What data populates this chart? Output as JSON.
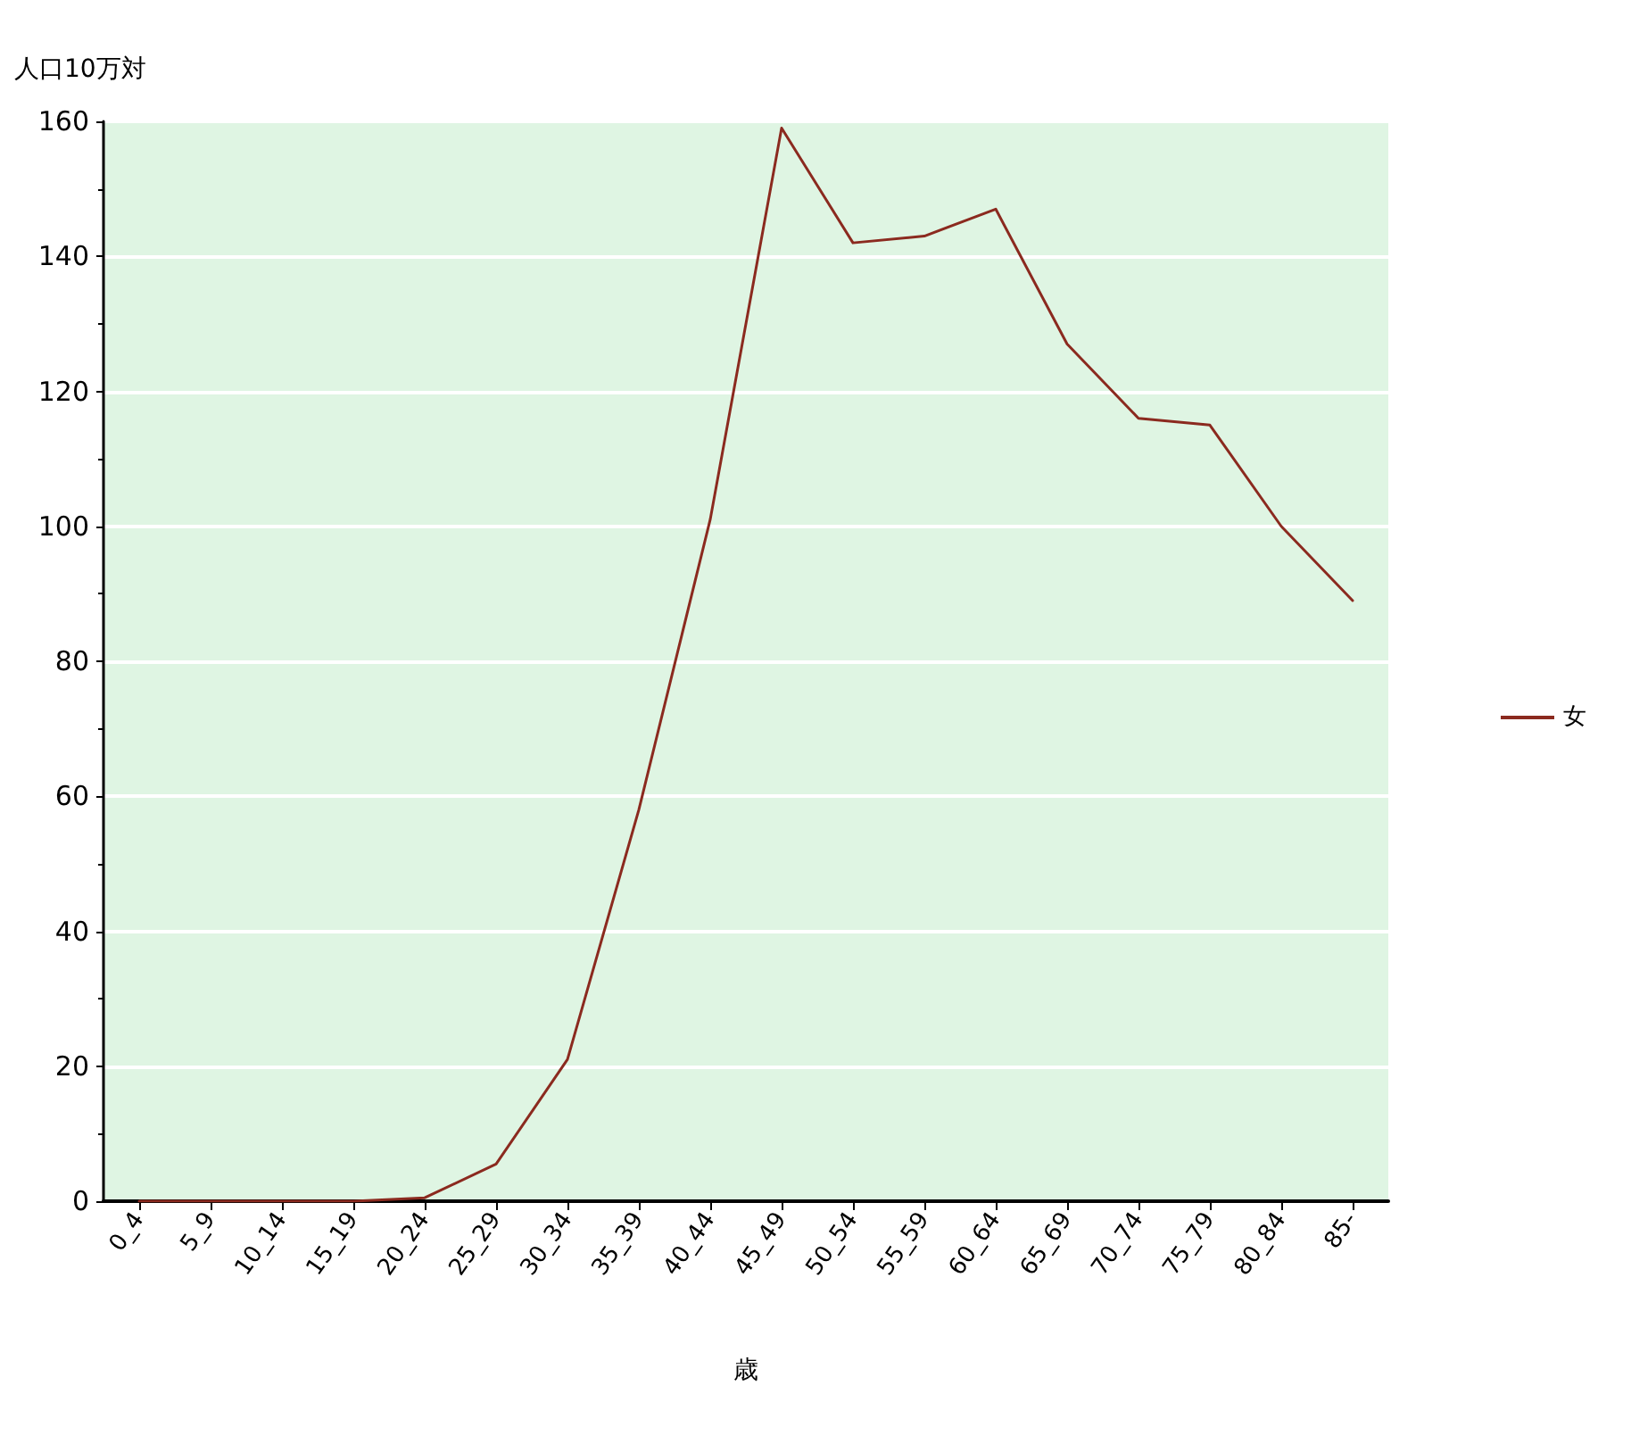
{
  "chart_data": {
    "type": "line",
    "ylabel": "人口10万対",
    "xlabel": "歳",
    "categories": [
      "0_4",
      "5_9",
      "10_14",
      "15_19",
      "20_24",
      "25_29",
      "30_34",
      "35_39",
      "40_44",
      "45_49",
      "50_54",
      "55_59",
      "60_64",
      "65_69",
      "70_74",
      "75_79",
      "80_84",
      "85-"
    ],
    "series": [
      {
        "name": "女",
        "color": "#8b2a1f",
        "values": [
          0,
          0,
          0,
          0,
          0.5,
          5.5,
          21,
          58,
          101,
          159,
          142,
          143,
          147,
          127,
          116,
          115,
          100,
          89
        ]
      }
    ],
    "ylim": [
      0,
      160
    ],
    "yticks": [
      0,
      20,
      40,
      60,
      80,
      100,
      120,
      140,
      160
    ],
    "grid": "y",
    "legend": "right",
    "marker": "none",
    "line_style": "solid"
  }
}
